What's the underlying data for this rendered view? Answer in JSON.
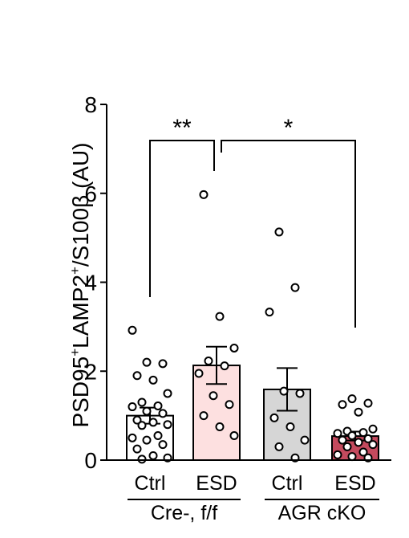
{
  "chart_data": {
    "type": "bar",
    "ylabel": "PSD95⁺LAMP2⁺/S100β (AU)",
    "ylabel_parts": {
      "a": "PSD95",
      "sup1": "+",
      "b": "LAMP2",
      "sup2": "+",
      "c": "/S100β (AU)"
    },
    "ylim": [
      0,
      8
    ],
    "yticks": [
      0,
      2,
      4,
      6,
      8
    ],
    "categories": [
      "Ctrl",
      "ESD",
      "Ctrl",
      "ESD"
    ],
    "groups": [
      {
        "label": "Cre-, f/f",
        "members": [
          0,
          1
        ]
      },
      {
        "label": "AGR cKO",
        "members": [
          2,
          3
        ]
      }
    ],
    "values": [
      1.0,
      2.13,
      1.59,
      0.54
    ],
    "errors": [
      0.18,
      0.42,
      0.48,
      0.1
    ],
    "bar_colors": [
      "#ffffff",
      "#fde0e0",
      "#d6d6d6",
      "#c44a5e"
    ],
    "points": [
      [
        2.92,
        2.2,
        2.17,
        1.9,
        1.8,
        1.5,
        1.3,
        1.22,
        1.2,
        1.1,
        1.05,
        0.9,
        0.85,
        0.8,
        0.78,
        0.55,
        0.5,
        0.45,
        0.35,
        0.25,
        0.1,
        0.05,
        0.02
      ],
      [
        5.97,
        3.23,
        2.52,
        2.23,
        2.12,
        1.95,
        1.45,
        1.25,
        1.0,
        0.75,
        0.55
      ],
      [
        5.13,
        3.88,
        3.33,
        1.55,
        1.5,
        0.95,
        0.75,
        0.45,
        0.3,
        0.05
      ],
      [
        1.38,
        1.28,
        1.25,
        1.08,
        0.7,
        0.65,
        0.62,
        0.6,
        0.55,
        0.48,
        0.45,
        0.4,
        0.35,
        0.3,
        0.18,
        0.12,
        0.08,
        0.05
      ]
    ],
    "significance": [
      {
        "from": 0,
        "to": 1,
        "label": "**"
      },
      {
        "from": 1,
        "to": 3,
        "label": "*"
      }
    ],
    "grid": false,
    "legend": "none"
  }
}
